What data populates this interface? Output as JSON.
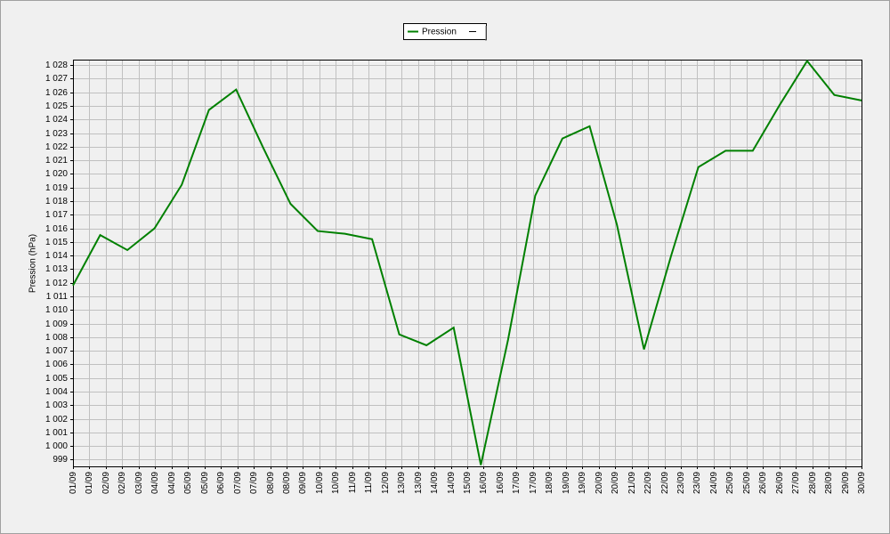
{
  "chart_data": {
    "type": "line",
    "y_label": "Pression (hPa)",
    "x": [
      1,
      2,
      3,
      4,
      5,
      6,
      7,
      8,
      9,
      10,
      11,
      12,
      13,
      14,
      15,
      16,
      17,
      18,
      19,
      20,
      21,
      22,
      23,
      24,
      25,
      26,
      27,
      28,
      29,
      30
    ],
    "series": [
      {
        "name": "Pression",
        "color": "#008000",
        "values": [
          1011.8,
          1015.5,
          1014.4,
          1016.0,
          1019.2,
          1024.7,
          1026.2,
          1021.9,
          1017.8,
          1015.8,
          1015.6,
          1015.2,
          1008.2,
          1007.4,
          1008.7,
          998.6,
          1007.8,
          1018.4,
          1022.6,
          1023.5,
          1016.3,
          1007.1,
          1014.0,
          1020.5,
          1021.7,
          1021.7,
          1025.1,
          1028.3,
          1025.8,
          1025.4
        ]
      }
    ],
    "xlim": [
      1,
      30
    ],
    "xticks": [
      {
        "value": 1,
        "label": "01/09"
      },
      {
        "value": 1.604,
        "label": "01/09"
      },
      {
        "value": 2.208,
        "label": "02/09"
      },
      {
        "value": 2.813,
        "label": "02/09"
      },
      {
        "value": 3.417,
        "label": "03/09"
      },
      {
        "value": 4.021,
        "label": "04/09"
      },
      {
        "value": 4.625,
        "label": "04/09"
      },
      {
        "value": 5.229,
        "label": "05/09"
      },
      {
        "value": 5.833,
        "label": "05/09"
      },
      {
        "value": 6.438,
        "label": "06/09"
      },
      {
        "value": 7.042,
        "label": "07/09"
      },
      {
        "value": 7.646,
        "label": "07/09"
      },
      {
        "value": 8.25,
        "label": "08/09"
      },
      {
        "value": 8.854,
        "label": "08/09"
      },
      {
        "value": 9.458,
        "label": "09/09"
      },
      {
        "value": 10.063,
        "label": "10/09"
      },
      {
        "value": 10.667,
        "label": "10/09"
      },
      {
        "value": 11.271,
        "label": "11/09"
      },
      {
        "value": 11.875,
        "label": "11/09"
      },
      {
        "value": 12.479,
        "label": "12/09"
      },
      {
        "value": 13.083,
        "label": "13/09"
      },
      {
        "value": 13.688,
        "label": "13/09"
      },
      {
        "value": 14.292,
        "label": "14/09"
      },
      {
        "value": 14.896,
        "label": "14/09"
      },
      {
        "value": 15.5,
        "label": "15/09"
      },
      {
        "value": 16.104,
        "label": "16/09"
      },
      {
        "value": 16.708,
        "label": "16/09"
      },
      {
        "value": 17.313,
        "label": "17/09"
      },
      {
        "value": 17.917,
        "label": "17/09"
      },
      {
        "value": 18.521,
        "label": "18/09"
      },
      {
        "value": 19.125,
        "label": "19/09"
      },
      {
        "value": 19.729,
        "label": "19/09"
      },
      {
        "value": 20.333,
        "label": "20/09"
      },
      {
        "value": 20.938,
        "label": "20/09"
      },
      {
        "value": 21.542,
        "label": "21/09"
      },
      {
        "value": 22.146,
        "label": "22/09"
      },
      {
        "value": 22.75,
        "label": "22/09"
      },
      {
        "value": 23.354,
        "label": "23/09"
      },
      {
        "value": 23.958,
        "label": "23/09"
      },
      {
        "value": 24.563,
        "label": "24/09"
      },
      {
        "value": 25.167,
        "label": "25/09"
      },
      {
        "value": 25.771,
        "label": "25/09"
      },
      {
        "value": 26.375,
        "label": "26/09"
      },
      {
        "value": 26.979,
        "label": "26/09"
      },
      {
        "value": 27.583,
        "label": "27/09"
      },
      {
        "value": 28.188,
        "label": "28/09"
      },
      {
        "value": 28.792,
        "label": "28/09"
      },
      {
        "value": 29.396,
        "label": "29/09"
      },
      {
        "value": 30,
        "label": "30/09"
      }
    ],
    "ylim": [
      998.5,
      1028.4
    ],
    "yticks": [
      999,
      {
        "value": 1000,
        "label": "1 000"
      },
      {
        "value": 1001,
        "label": "1 001"
      },
      {
        "value": 1002,
        "label": "1 002"
      },
      {
        "value": 1003,
        "label": "1 003"
      },
      {
        "value": 1004,
        "label": "1 004"
      },
      {
        "value": 1005,
        "label": "1 005"
      },
      {
        "value": 1006,
        "label": "1 006"
      },
      {
        "value": 1007,
        "label": "1 007"
      },
      {
        "value": 1008,
        "label": "1 008"
      },
      {
        "value": 1009,
        "label": "1 009"
      },
      {
        "value": 1010,
        "label": "1 010"
      },
      {
        "value": 1011,
        "label": "1 011"
      },
      {
        "value": 1012,
        "label": "1 012"
      },
      {
        "value": 1013,
        "label": "1 013"
      },
      {
        "value": 1014,
        "label": "1 014"
      },
      {
        "value": 1015,
        "label": "1 015"
      },
      {
        "value": 1016,
        "label": "1 016"
      },
      {
        "value": 1017,
        "label": "1 017"
      },
      {
        "value": 1018,
        "label": "1 018"
      },
      {
        "value": 1019,
        "label": "1 019"
      },
      {
        "value": 1020,
        "label": "1 020"
      },
      {
        "value": 1021,
        "label": "1 021"
      },
      {
        "value": 1022,
        "label": "1 022"
      },
      {
        "value": 1023,
        "label": "1 023"
      },
      {
        "value": 1024,
        "label": "1 024"
      },
      {
        "value": 1025,
        "label": "1 025"
      },
      {
        "value": 1026,
        "label": "1 026"
      },
      {
        "value": 1027,
        "label": "1 027"
      },
      {
        "value": 1028,
        "label": "1 028"
      }
    ],
    "grid": true,
    "legend": "top"
  }
}
